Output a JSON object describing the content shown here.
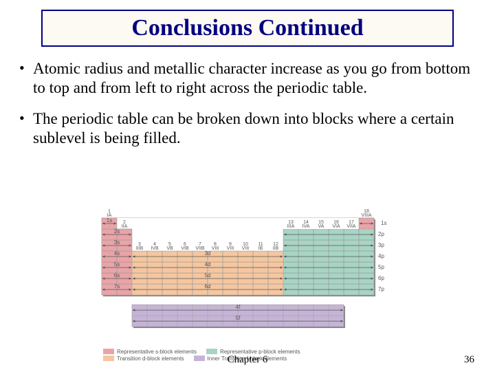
{
  "title": "Conclusions Continued",
  "bullets": [
    "Atomic radius and metallic character increase as you go from bottom to top and from left to right across the periodic table.",
    "The periodic table can be broken down into blocks where a certain sublevel is being filled."
  ],
  "footer": {
    "chapter": "Chapter 6",
    "page": "36"
  },
  "pt": {
    "colors": {
      "s_block": "#e9a4a8",
      "d_block": "#f5c6a0",
      "p_block": "#a8d4c4",
      "f_block": "#c6b4d6",
      "grid": "#9a9a9a",
      "shadow": "#888888",
      "bg": "#ffffff"
    },
    "cell": 22,
    "group_top": [
      {
        "n": "1",
        "r": "IA"
      },
      {
        "n": "2",
        "r": "IIA"
      },
      {
        "n": "3",
        "r": "IIIB"
      },
      {
        "n": "4",
        "r": "IVB"
      },
      {
        "n": "5",
        "r": "VB"
      },
      {
        "n": "6",
        "r": "VIB"
      },
      {
        "n": "7",
        "r": "VIIB"
      },
      {
        "n": "8",
        "r": "VIII"
      },
      {
        "n": "9",
        "r": "VIII"
      },
      {
        "n": "10",
        "r": "VIII"
      },
      {
        "n": "11",
        "r": "IB"
      },
      {
        "n": "12",
        "r": "IIB"
      },
      {
        "n": "13",
        "r": "IIIA"
      },
      {
        "n": "14",
        "r": "IVA"
      },
      {
        "n": "15",
        "r": "VA"
      },
      {
        "n": "16",
        "r": "VIA"
      },
      {
        "n": "17",
        "r": "VIIA"
      },
      {
        "n": "18",
        "r": "VIIIA"
      }
    ],
    "s_rows": [
      "1s",
      "2s",
      "3s",
      "4s",
      "5s",
      "6s",
      "7s"
    ],
    "p_rows": [
      "1s",
      "2p",
      "3p",
      "4p",
      "5p",
      "6p",
      "7p"
    ],
    "d_rows": [
      "3d",
      "4d",
      "5d",
      "6d"
    ],
    "f_rows": [
      "4f",
      "5f"
    ],
    "legend": [
      {
        "c": "#e9a4a8",
        "t": "Representative s-block elements"
      },
      {
        "c": "#f5c6a0",
        "t": "Transition d-block elements"
      },
      {
        "c": "#a8d4c4",
        "t": "Representative p-block elements"
      },
      {
        "c": "#c6b4d6",
        "t": "Inner Transition f-block elements"
      }
    ]
  }
}
